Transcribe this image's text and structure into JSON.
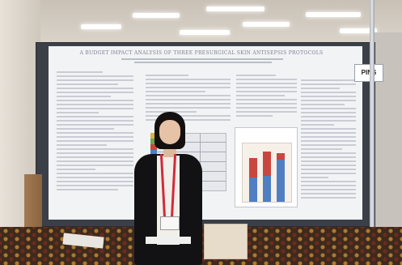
{
  "poster": {
    "title": "A BUDGET IMPACT ANALYSIS OF THREE PRESURGICAL SKIN ANTISEPSIS PROTOCOLS"
  },
  "sign": {
    "label": "PINS"
  },
  "colors": {
    "board": "#3b3f47",
    "poster_background": "#f2f3f5",
    "lanyard": "#d22a3b",
    "jacket": "#121214"
  }
}
